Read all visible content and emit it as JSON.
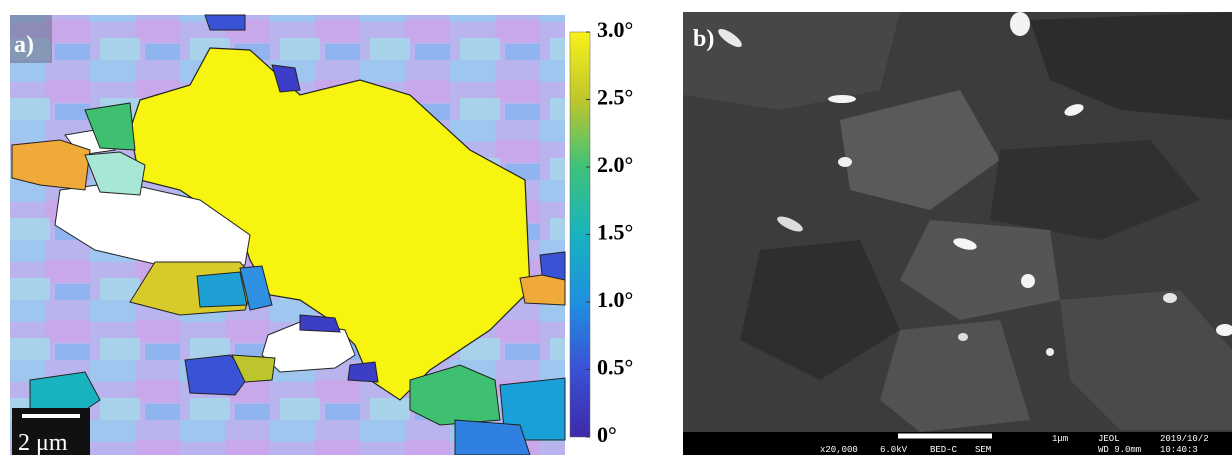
{
  "panel_a": {
    "label": "a)",
    "scale_bar": "2 μm",
    "colorbar": {
      "lim": [
        0,
        3
      ],
      "ticks": [
        {
          "value": 3,
          "label": "3.0°"
        },
        {
          "value": 2.5,
          "label": "2.5°"
        },
        {
          "value": 2,
          "label": "2.0°"
        },
        {
          "value": 1.5,
          "label": "1.5°"
        },
        {
          "value": 1,
          "label": "1.0°"
        },
        {
          "value": 0.5,
          "label": "0.5°"
        },
        {
          "value": 0,
          "label": "0°"
        }
      ]
    }
  },
  "panel_b": {
    "label": "b)",
    "info_bar": [
      "x20,000",
      "6.0kV",
      "BED-C",
      "SEM",
      "1μm",
      "JEOL",
      "2019/10/2",
      "WD 9.0mm",
      "10:40:3"
    ]
  }
}
